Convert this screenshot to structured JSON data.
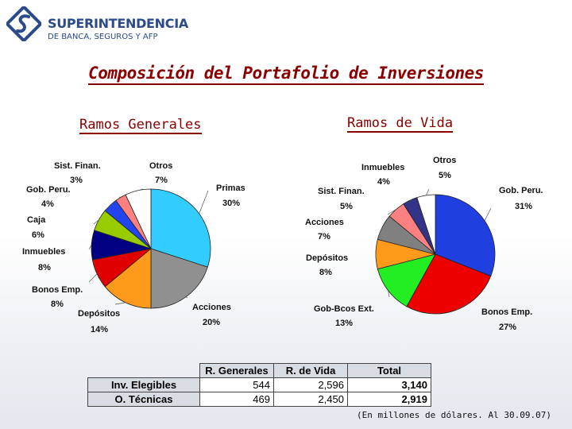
{
  "header": {
    "org_name": "SUPERINTENDENCIA",
    "org_sub": "DE BANCA, SEGUROS Y AFP"
  },
  "title": "Composición del Portafolio de Inversiones",
  "chart_data": [
    {
      "type": "pie",
      "title": "Ramos Generales",
      "slices": [
        {
          "label": "Primas",
          "value": 30,
          "value_label": "30%",
          "color": "#33ccff"
        },
        {
          "label": "Acciones",
          "value": 20,
          "value_label": "20%",
          "color": "#909090"
        },
        {
          "label": "Depósitos",
          "value": 14,
          "value_label": "14%",
          "color": "#ff9a1a"
        },
        {
          "label": "Bonos Emp.",
          "value": 8,
          "value_label": "8%",
          "color": "#e00000"
        },
        {
          "label": "Inmuebles",
          "value": 8,
          "value_label": "8%",
          "color": "#000080"
        },
        {
          "label": "Caja",
          "value": 6,
          "value_label": "6%",
          "color": "#99cc00"
        },
        {
          "label": "Gob. Peru.",
          "value": 4,
          "value_label": "4%",
          "color": "#2244ee"
        },
        {
          "label": "Sist. Finan.",
          "value": 3,
          "value_label": "3%",
          "color": "#ff8080"
        },
        {
          "label": "Otros",
          "value": 7,
          "value_label": "7%",
          "color": "#ffffff"
        }
      ]
    },
    {
      "type": "pie",
      "title": "Ramos de Vida",
      "slices": [
        {
          "label": "Gob. Peru.",
          "value": 31,
          "value_label": "31%",
          "color": "#1f3fe0"
        },
        {
          "label": "Bonos Emp.",
          "value": 27,
          "value_label": "27%",
          "color": "#ee0000"
        },
        {
          "label": "Gob-Bcos Ext.",
          "value": 13,
          "value_label": "13%",
          "color": "#22ee22"
        },
        {
          "label": "Depósitos",
          "value": 8,
          "value_label": "8%",
          "color": "#ff9a1a"
        },
        {
          "label": "Acciones",
          "value": 7,
          "value_label": "7%",
          "color": "#808080"
        },
        {
          "label": "Sist. Finan.",
          "value": 5,
          "value_label": "5%",
          "color": "#ff8080"
        },
        {
          "label": "Inmuebles",
          "value": 4,
          "value_label": "4%",
          "color": "#333388"
        },
        {
          "label": "Otros",
          "value": 5,
          "value_label": "5%",
          "color": "#ffffff"
        }
      ]
    }
  ],
  "table": {
    "headers": [
      "R. Generales",
      "R. de Vida",
      "Total"
    ],
    "rows": [
      {
        "label": "Inv. Elegibles",
        "values": [
          "544",
          "2,596",
          "3,140"
        ]
      },
      {
        "label": "O. Técnicas",
        "values": [
          "469",
          "2,450",
          "2,919"
        ]
      }
    ]
  },
  "footnote": "(En millones de dólares. Al 30.09.07)"
}
